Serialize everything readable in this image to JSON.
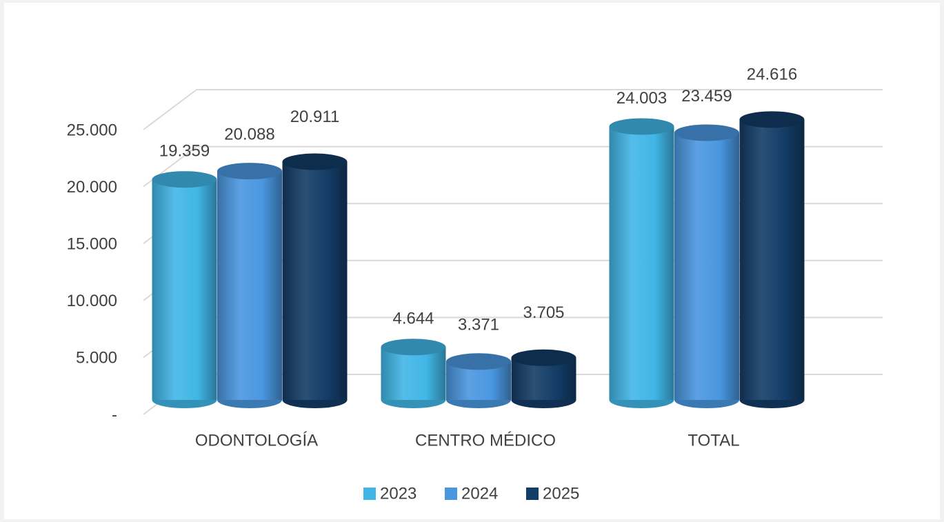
{
  "chart_data": {
    "type": "bar",
    "categories": [
      "ODONTOLOGÍA",
      "CENTRO MÉDICO",
      "TOTAL"
    ],
    "series": [
      {
        "name": "2023",
        "color": "#41b6e6",
        "values": [
          19359,
          4644,
          24003
        ],
        "value_labels": [
          "19.359",
          "4.644",
          "24.003"
        ]
      },
      {
        "name": "2024",
        "color": "#4a97e0",
        "values": [
          20088,
          3371,
          23459
        ],
        "value_labels": [
          "20.088",
          "3.371",
          "23.459"
        ]
      },
      {
        "name": "2025",
        "color": "#133c66",
        "values": [
          20911,
          3705,
          24616
        ],
        "value_labels": [
          "20.911",
          "3.705",
          "24.616"
        ]
      }
    ],
    "ylim": [
      0,
      25000
    ],
    "yticks": [
      {
        "value": 0,
        "label": "-"
      },
      {
        "value": 5000,
        "label": "5.000"
      },
      {
        "value": 10000,
        "label": "10.000"
      },
      {
        "value": 15000,
        "label": "15.000"
      },
      {
        "value": 20000,
        "label": "20.000"
      },
      {
        "value": 25000,
        "label": "25.000"
      }
    ],
    "grid": true,
    "legend": "bottom"
  }
}
